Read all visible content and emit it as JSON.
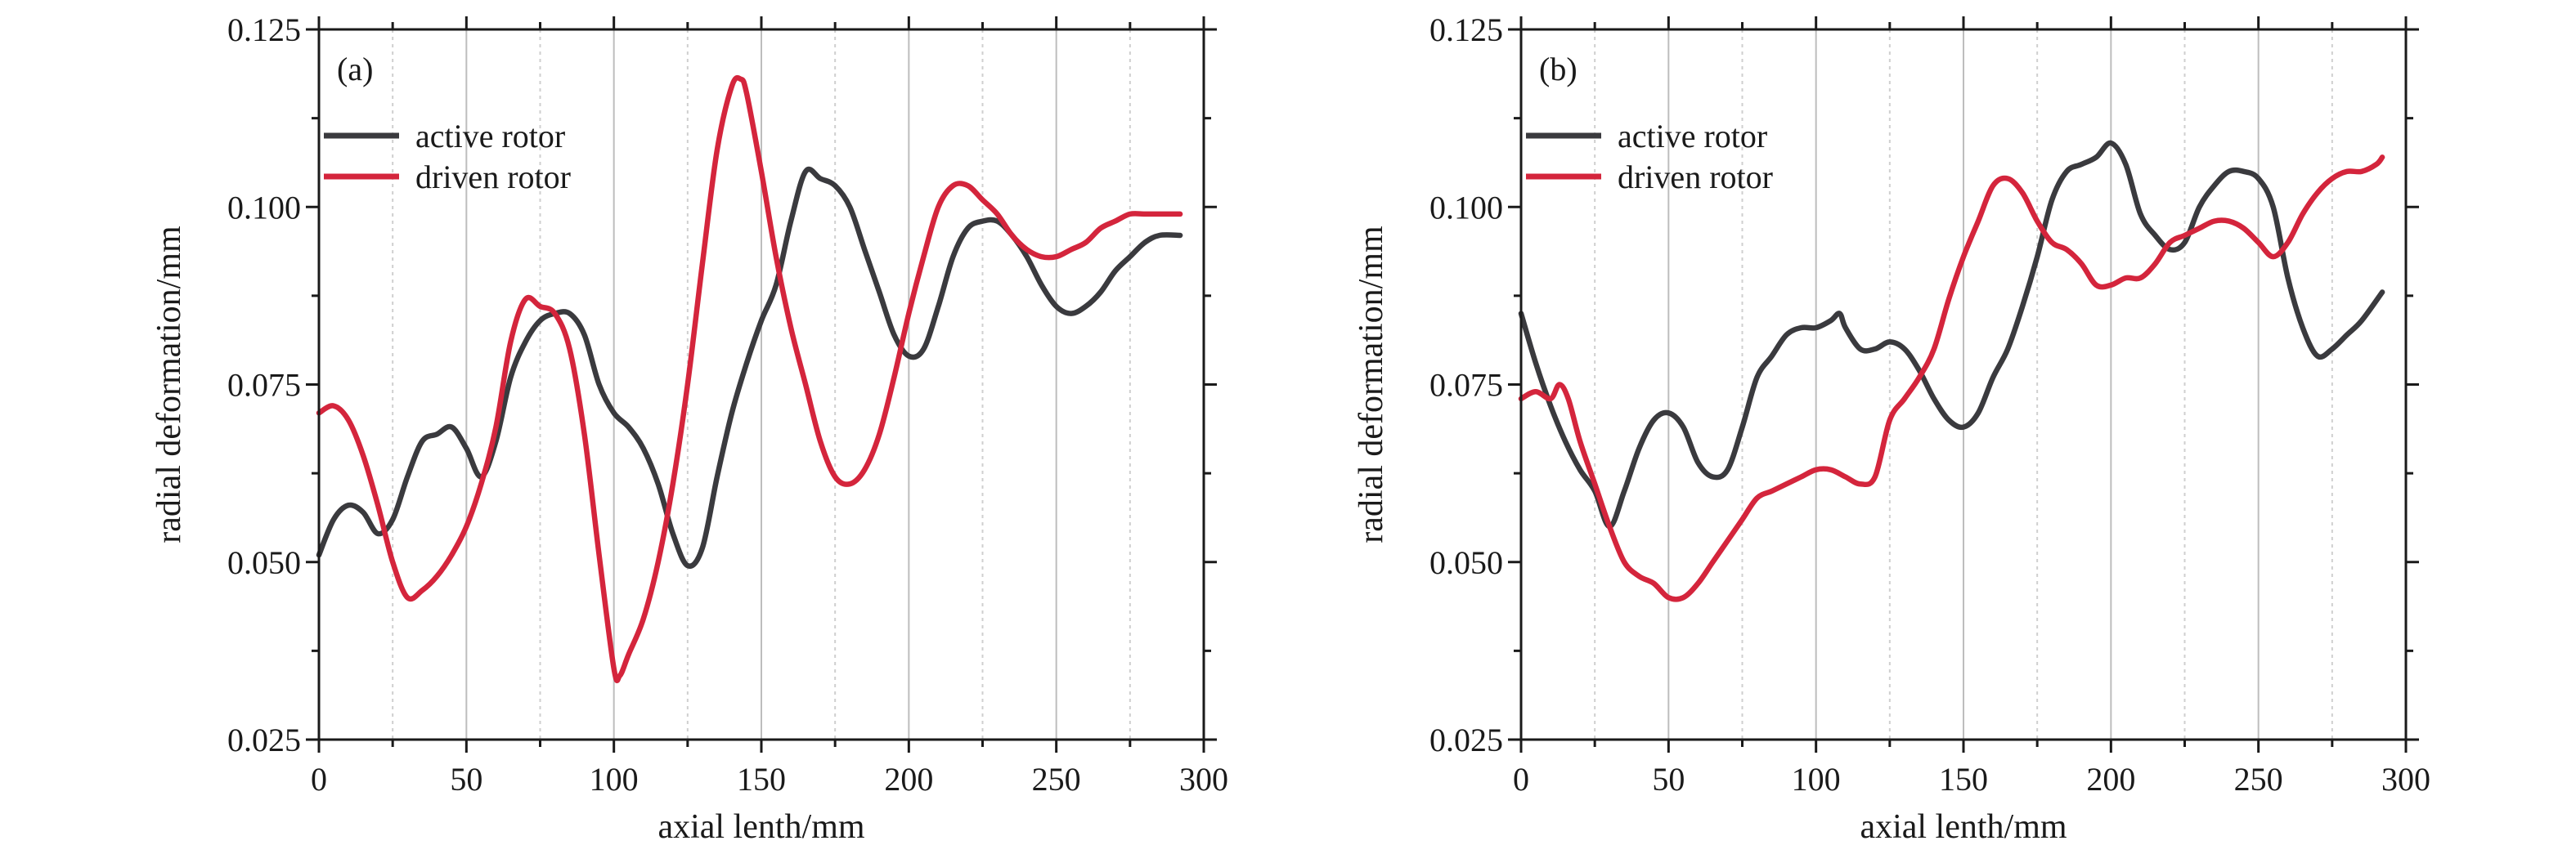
{
  "chart_data": [
    {
      "type": "line",
      "panel_label": "(a)",
      "xlabel": "axial lenth/mm",
      "ylabel": "radial deformation/mm",
      "xlim": [
        0,
        300
      ],
      "ylim": [
        0.025,
        0.125
      ],
      "xticks": [
        0,
        50,
        100,
        150,
        200,
        250,
        300
      ],
      "xtick_labels": [
        "0",
        "50",
        "100",
        "150",
        "200",
        "250",
        "300"
      ],
      "yticks": [
        0.025,
        0.05,
        0.075,
        0.1,
        0.125
      ],
      "ytick_labels": [
        "0.025",
        "0.050",
        "0.075",
        "0.100",
        "0.125"
      ],
      "grid": "vertical",
      "legend_position": "top-left",
      "series": [
        {
          "name": "active rotor",
          "color": "#3a3a3e",
          "points": [
            [
              0,
              0.051
            ],
            [
              5,
              0.056
            ],
            [
              10,
              0.058
            ],
            [
              15,
              0.057
            ],
            [
              20,
              0.054
            ],
            [
              25,
              0.056
            ],
            [
              30,
              0.062
            ],
            [
              35,
              0.067
            ],
            [
              40,
              0.068
            ],
            [
              45,
              0.069
            ],
            [
              50,
              0.066
            ],
            [
              55,
              0.062
            ],
            [
              60,
              0.067
            ],
            [
              65,
              0.076
            ],
            [
              70,
              0.081
            ],
            [
              75,
              0.084
            ],
            [
              80,
              0.085
            ],
            [
              85,
              0.085
            ],
            [
              90,
              0.082
            ],
            [
              95,
              0.075
            ],
            [
              100,
              0.071
            ],
            [
              105,
              0.069
            ],
            [
              110,
              0.066
            ],
            [
              115,
              0.061
            ],
            [
              120,
              0.054
            ],
            [
              125,
              0.0495
            ],
            [
              130,
              0.052
            ],
            [
              135,
              0.062
            ],
            [
              140,
              0.071
            ],
            [
              145,
              0.078
            ],
            [
              150,
              0.084
            ],
            [
              155,
              0.089
            ],
            [
              160,
              0.098
            ],
            [
              165,
              0.105
            ],
            [
              170,
              0.104
            ],
            [
              175,
              0.103
            ],
            [
              180,
              0.1
            ],
            [
              185,
              0.094
            ],
            [
              190,
              0.088
            ],
            [
              195,
              0.082
            ],
            [
              200,
              0.079
            ],
            [
              205,
              0.08
            ],
            [
              210,
              0.086
            ],
            [
              215,
              0.093
            ],
            [
              220,
              0.097
            ],
            [
              225,
              0.098
            ],
            [
              230,
              0.098
            ],
            [
              235,
              0.096
            ],
            [
              240,
              0.093
            ],
            [
              245,
              0.089
            ],
            [
              250,
              0.086
            ],
            [
              255,
              0.085
            ],
            [
              260,
              0.086
            ],
            [
              265,
              0.088
            ],
            [
              270,
              0.091
            ],
            [
              275,
              0.093
            ],
            [
              280,
              0.095
            ],
            [
              285,
              0.096
            ],
            [
              292,
              0.096
            ]
          ]
        },
        {
          "name": "driven rotor",
          "color": "#d4253c",
          "points": [
            [
              0,
              0.071
            ],
            [
              5,
              0.072
            ],
            [
              10,
              0.07
            ],
            [
              15,
              0.065
            ],
            [
              20,
              0.058
            ],
            [
              25,
              0.05
            ],
            [
              30,
              0.045
            ],
            [
              35,
              0.046
            ],
            [
              40,
              0.048
            ],
            [
              45,
              0.051
            ],
            [
              50,
              0.055
            ],
            [
              55,
              0.061
            ],
            [
              60,
              0.069
            ],
            [
              65,
              0.081
            ],
            [
              70,
              0.087
            ],
            [
              75,
              0.086
            ],
            [
              80,
              0.085
            ],
            [
              85,
              0.08
            ],
            [
              90,
              0.068
            ],
            [
              95,
              0.051
            ],
            [
              100,
              0.035
            ],
            [
              102,
              0.034
            ],
            [
              105,
              0.037
            ],
            [
              110,
              0.042
            ],
            [
              115,
              0.05
            ],
            [
              120,
              0.061
            ],
            [
              125,
              0.075
            ],
            [
              130,
              0.092
            ],
            [
              135,
              0.108
            ],
            [
              140,
              0.117
            ],
            [
              143,
              0.118
            ],
            [
              145,
              0.116
            ],
            [
              150,
              0.105
            ],
            [
              155,
              0.093
            ],
            [
              160,
              0.083
            ],
            [
              165,
              0.075
            ],
            [
              170,
              0.067
            ],
            [
              175,
              0.062
            ],
            [
              180,
              0.061
            ],
            [
              185,
              0.063
            ],
            [
              190,
              0.068
            ],
            [
              195,
              0.076
            ],
            [
              200,
              0.085
            ],
            [
              205,
              0.093
            ],
            [
              210,
              0.1
            ],
            [
              215,
              0.103
            ],
            [
              220,
              0.103
            ],
            [
              225,
              0.101
            ],
            [
              230,
              0.099
            ],
            [
              235,
              0.096
            ],
            [
              240,
              0.094
            ],
            [
              245,
              0.093
            ],
            [
              250,
              0.093
            ],
            [
              255,
              0.094
            ],
            [
              260,
              0.095
            ],
            [
              265,
              0.097
            ],
            [
              270,
              0.098
            ],
            [
              275,
              0.099
            ],
            [
              280,
              0.099
            ],
            [
              285,
              0.099
            ],
            [
              292,
              0.099
            ]
          ]
        }
      ]
    },
    {
      "type": "line",
      "panel_label": "(b)",
      "xlabel": "axial lenth/mm",
      "ylabel": "radial deformation/mm",
      "xlim": [
        0,
        300
      ],
      "ylim": [
        0.025,
        0.125
      ],
      "xticks": [
        0,
        50,
        100,
        150,
        200,
        250,
        300
      ],
      "xtick_labels": [
        "0",
        "50",
        "100",
        "150",
        "200",
        "250",
        "300"
      ],
      "yticks": [
        0.025,
        0.05,
        0.075,
        0.1,
        0.125
      ],
      "ytick_labels": [
        "0.025",
        "0.050",
        "0.075",
        "0.100",
        "0.125"
      ],
      "grid": "vertical",
      "legend_position": "top-left",
      "series": [
        {
          "name": "active rotor",
          "color": "#3a3a3e",
          "points": [
            [
              0,
              0.085
            ],
            [
              5,
              0.078
            ],
            [
              10,
              0.072
            ],
            [
              15,
              0.067
            ],
            [
              20,
              0.063
            ],
            [
              25,
              0.06
            ],
            [
              30,
              0.055
            ],
            [
              35,
              0.06
            ],
            [
              40,
              0.066
            ],
            [
              45,
              0.07
            ],
            [
              50,
              0.071
            ],
            [
              55,
              0.069
            ],
            [
              60,
              0.064
            ],
            [
              65,
              0.062
            ],
            [
              70,
              0.063
            ],
            [
              75,
              0.069
            ],
            [
              80,
              0.076
            ],
            [
              85,
              0.079
            ],
            [
              90,
              0.082
            ],
            [
              95,
              0.083
            ],
            [
              100,
              0.083
            ],
            [
              105,
              0.084
            ],
            [
              108,
              0.085
            ],
            [
              110,
              0.083
            ],
            [
              115,
              0.08
            ],
            [
              120,
              0.08
            ],
            [
              125,
              0.081
            ],
            [
              130,
              0.08
            ],
            [
              135,
              0.077
            ],
            [
              140,
              0.073
            ],
            [
              145,
              0.07
            ],
            [
              150,
              0.069
            ],
            [
              155,
              0.071
            ],
            [
              160,
              0.076
            ],
            [
              165,
              0.08
            ],
            [
              170,
              0.086
            ],
            [
              175,
              0.093
            ],
            [
              180,
              0.101
            ],
            [
              185,
              0.105
            ],
            [
              190,
              0.106
            ],
            [
              195,
              0.107
            ],
            [
              200,
              0.109
            ],
            [
              205,
              0.106
            ],
            [
              210,
              0.099
            ],
            [
              215,
              0.096
            ],
            [
              220,
              0.094
            ],
            [
              225,
              0.095
            ],
            [
              230,
              0.1
            ],
            [
              235,
              0.103
            ],
            [
              240,
              0.105
            ],
            [
              245,
              0.105
            ],
            [
              250,
              0.104
            ],
            [
              255,
              0.1
            ],
            [
              260,
              0.09
            ],
            [
              265,
              0.083
            ],
            [
              270,
              0.079
            ],
            [
              275,
              0.08
            ],
            [
              280,
              0.082
            ],
            [
              285,
              0.084
            ],
            [
              292,
              0.088
            ]
          ]
        },
        {
          "name": "driven rotor",
          "color": "#d4253c",
          "points": [
            [
              0,
              0.073
            ],
            [
              5,
              0.074
            ],
            [
              10,
              0.073
            ],
            [
              13,
              0.075
            ],
            [
              16,
              0.073
            ],
            [
              20,
              0.067
            ],
            [
              25,
              0.061
            ],
            [
              30,
              0.055
            ],
            [
              35,
              0.05
            ],
            [
              40,
              0.048
            ],
            [
              45,
              0.047
            ],
            [
              50,
              0.045
            ],
            [
              55,
              0.045
            ],
            [
              60,
              0.047
            ],
            [
              65,
              0.05
            ],
            [
              70,
              0.053
            ],
            [
              75,
              0.056
            ],
            [
              80,
              0.059
            ],
            [
              85,
              0.06
            ],
            [
              90,
              0.061
            ],
            [
              95,
              0.062
            ],
            [
              100,
              0.063
            ],
            [
              105,
              0.063
            ],
            [
              110,
              0.062
            ],
            [
              115,
              0.061
            ],
            [
              120,
              0.062
            ],
            [
              125,
              0.07
            ],
            [
              130,
              0.073
            ],
            [
              135,
              0.076
            ],
            [
              140,
              0.08
            ],
            [
              145,
              0.087
            ],
            [
              150,
              0.093
            ],
            [
              155,
              0.098
            ],
            [
              160,
              0.103
            ],
            [
              165,
              0.104
            ],
            [
              170,
              0.102
            ],
            [
              175,
              0.098
            ],
            [
              180,
              0.095
            ],
            [
              185,
              0.094
            ],
            [
              190,
              0.092
            ],
            [
              195,
              0.089
            ],
            [
              200,
              0.089
            ],
            [
              205,
              0.09
            ],
            [
              210,
              0.09
            ],
            [
              215,
              0.092
            ],
            [
              220,
              0.095
            ],
            [
              225,
              0.096
            ],
            [
              230,
              0.097
            ],
            [
              235,
              0.098
            ],
            [
              240,
              0.098
            ],
            [
              245,
              0.097
            ],
            [
              250,
              0.095
            ],
            [
              255,
              0.093
            ],
            [
              260,
              0.095
            ],
            [
              265,
              0.099
            ],
            [
              270,
              0.102
            ],
            [
              275,
              0.104
            ],
            [
              280,
              0.105
            ],
            [
              285,
              0.105
            ],
            [
              290,
              0.106
            ],
            [
              292,
              0.107
            ]
          ]
        }
      ]
    }
  ]
}
